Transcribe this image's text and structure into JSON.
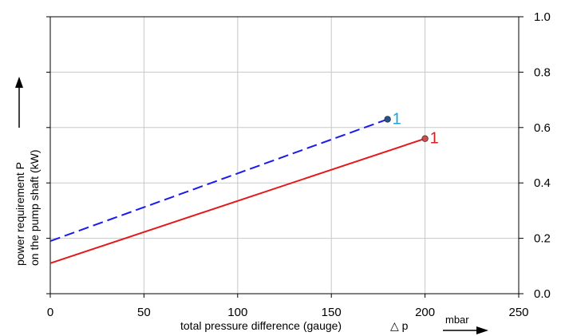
{
  "chart_data": {
    "type": "line",
    "xlabel": "total pressure difference (gauge)",
    "xlabel_symbol": "△ p",
    "xunit": "mbar",
    "ylabel_line1": "power requirement P",
    "ylabel_line2": "on the pump shaft (kW)",
    "xlim": [
      0,
      250
    ],
    "ylim": [
      0.0,
      1.0
    ],
    "x_ticks": [
      0,
      50,
      100,
      150,
      200,
      250
    ],
    "x_tick_labels": [
      "0",
      "50",
      "100",
      "150",
      "200",
      "250"
    ],
    "y_ticks": [
      0.0,
      0.2,
      0.4,
      0.6,
      0.8,
      1.0
    ],
    "y_tick_labels": [
      "0.0",
      "0.2",
      "0.4",
      "0.6",
      "0.8",
      "1.0"
    ],
    "y_axis_position": "right",
    "grid": true,
    "series": [
      {
        "label": "1",
        "color": "#1a1aee",
        "label_color": "#1aa3d9",
        "marker_color": "#2a4f8a",
        "dash": true,
        "x": [
          0,
          180
        ],
        "y": [
          0.19,
          0.63
        ]
      },
      {
        "label": "1",
        "color": "#e41a1a",
        "label_color": "#d42020",
        "marker_color": "#d24a4a",
        "dash": false,
        "x": [
          0,
          200
        ],
        "y": [
          0.11,
          0.56
        ]
      }
    ]
  }
}
